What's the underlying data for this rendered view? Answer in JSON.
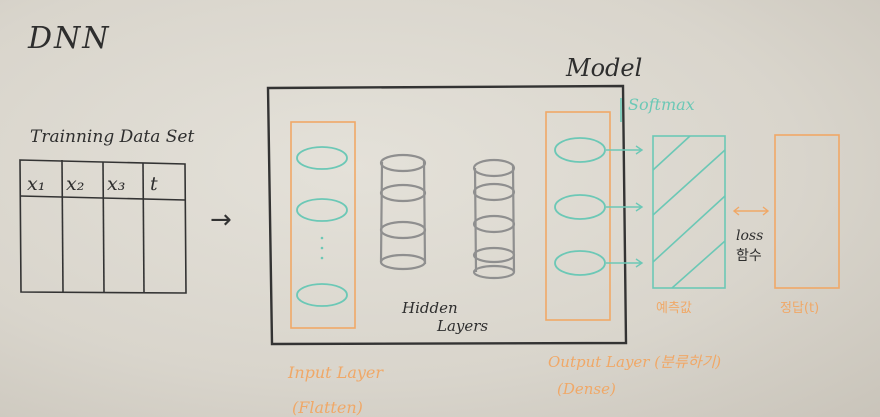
{
  "title": "DNN",
  "model_label": "Model",
  "dataset": {
    "title": "Trainning Data Set",
    "columns": [
      "x₁",
      "x₂",
      "x₃",
      "t"
    ]
  },
  "arrow": "→",
  "softmax_label": "Softmax",
  "hidden_label_line1": "Hidden",
  "hidden_label_line2": "Layers",
  "input_layer_label": "Input Layer",
  "input_layer_sub": "(Flatten)",
  "output_layer_label": "Output Layer (분류하기)",
  "output_layer_sub": "(Dense)",
  "loss_label_line1": "loss",
  "loss_label_line2": "함수",
  "prediction_label": "예측값",
  "answer_label": "정답(t)",
  "colors": {
    "pencil": "#3a3a3a",
    "orange": "#f0a867",
    "teal": "#6cc8b6",
    "grey": "#8f8f8f"
  }
}
